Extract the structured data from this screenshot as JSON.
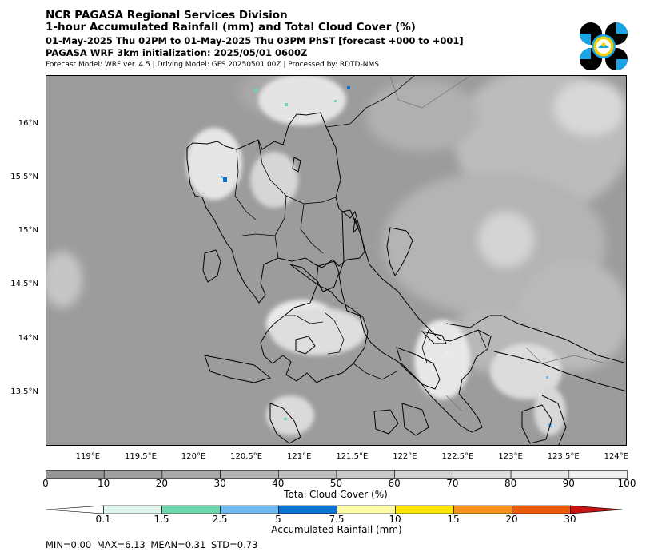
{
  "header": {
    "title1": "NCR PAGASA Regional Services Division",
    "title2": "1-hour Accumulated Rainfall (mm) and Total Cloud Cover (%)",
    "period": "01-May-2025 Thu 02PM to 01-May-2025 Thu 03PM PhST [forecast +000 to +001]",
    "init": "PAGASA WRF 3km initialization: 2025/05/01 0600Z",
    "meta": "Forecast Model: WRF ver. 4.5 | Driving Model: GFS 20250501 00Z | Processed by: RDTD-NMS"
  },
  "logo": {
    "name": "pagasa-seal"
  },
  "map": {
    "lat_labels": [
      "16°N",
      "15.5°N",
      "15°N",
      "14.5°N",
      "14°N",
      "13.5°N"
    ],
    "lat_values": [
      16,
      15.5,
      15,
      14.5,
      14,
      13.5
    ],
    "lon_labels": [
      "119°E",
      "119.5°E",
      "120°E",
      "120.5°E",
      "121°E",
      "121.5°E",
      "122°E",
      "122.5°E",
      "123°E",
      "123.5°E",
      "124°E"
    ],
    "lon_values": [
      119,
      119.5,
      120,
      120.5,
      121,
      121.5,
      122,
      122.5,
      123,
      123.5,
      124
    ],
    "extent": {
      "lon": [
        118.6,
        124.1
      ],
      "lat": [
        13.0,
        16.45
      ]
    },
    "ocean_color": "#9c9c9c",
    "coast_color": "#000000"
  },
  "cloud_cover": {
    "title": "Total Cloud Cover (%)",
    "ticks": [
      "0",
      "10",
      "20",
      "30",
      "40",
      "50",
      "60",
      "70",
      "80",
      "90",
      "100"
    ],
    "colors": [
      "#969696",
      "#a0a0a0",
      "#aaaaaa",
      "#b4b4b4",
      "#bebebe",
      "#c8c8c8",
      "#d2d2d2",
      "#dcdcdc",
      "#e6e6e6",
      "#f0f0f0"
    ]
  },
  "rainfall": {
    "title": "Accumulated Rainfall (mm)",
    "ticks": [
      "0.1",
      "1.5",
      "2.5",
      "5",
      "7.5",
      "10",
      "15",
      "20",
      "30"
    ],
    "colors": [
      "#ffffff",
      "#e0f5ec",
      "#6dd6ad",
      "#72b9f0",
      "#0c72d5",
      "#fefeaa",
      "#fde600",
      "#f59418",
      "#ef5a08",
      "#c91212"
    ]
  },
  "stats": {
    "min": "MIN=0.00",
    "max": "MAX=6.13",
    "mean": "MEAN=0.31",
    "std": "STD=0.73"
  }
}
